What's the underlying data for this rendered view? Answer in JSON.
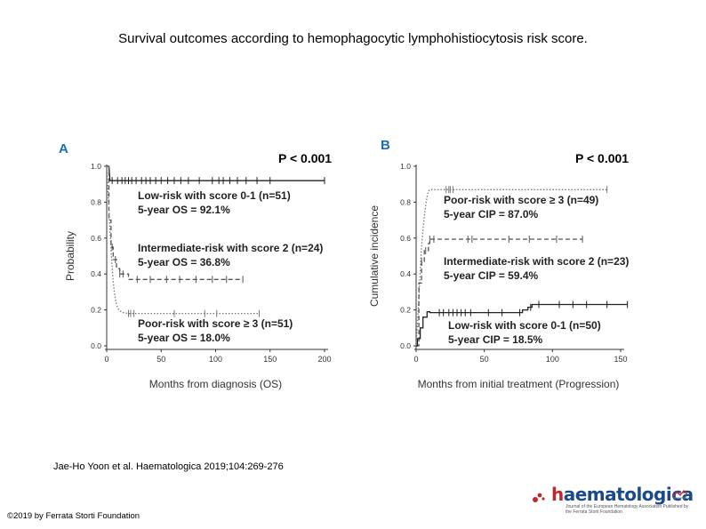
{
  "slide": {
    "title": "Survival outcomes according to hemophagocytic lymphohistiocytosis risk score.",
    "citation": "Jae-Ho Yoon et al. Haematologica 2019;104:269-276",
    "copyright": "©2019 by Ferrata Storti Foundation",
    "logo_text_h": "h",
    "logo_text_rest": "aematologica",
    "logo_subtitle": "Journal of the European Hematology Association Published by the Ferrata Storti Foundation"
  },
  "chart_data": [
    {
      "panel_label": "A",
      "type": "line",
      "title": "",
      "pvalue": "P < 0.001",
      "xlabel": "Months from diagnosis (OS)",
      "ylabel": "Probability",
      "xlim": [
        0,
        200
      ],
      "ylim": [
        0,
        1.0
      ],
      "xticks": [
        "0",
        "50",
        "100",
        "150",
        "200"
      ],
      "yticks": [
        "0.0",
        "0.2",
        "0.4",
        "0.6",
        "0.8",
        "1.0"
      ],
      "series": [
        {
          "style": "solid",
          "x": [
            0,
            2,
            3,
            200
          ],
          "y": [
            1.0,
            1.0,
            0.92,
            0.92
          ],
          "censor_x": [
            5,
            10,
            14,
            17,
            20,
            23,
            27,
            32,
            36,
            40,
            45,
            50,
            56,
            62,
            68,
            75,
            85,
            97,
            103,
            107,
            113,
            120,
            128,
            138,
            150,
            200
          ],
          "label_line1": "Low-risk with score 0-1 (n=51)",
          "label_line2": "5-year OS  = 92.1%"
        },
        {
          "style": "dashed",
          "x": [
            0,
            2,
            2,
            4,
            4,
            6,
            6,
            9,
            9,
            12,
            12,
            20,
            20,
            125
          ],
          "y": [
            1.0,
            1.0,
            0.7,
            0.7,
            0.55,
            0.55,
            0.48,
            0.48,
            0.43,
            0.43,
            0.4,
            0.4,
            0.37,
            0.37
          ],
          "censor_x": [
            5,
            8,
            12,
            15,
            28,
            40,
            55,
            67,
            82,
            97,
            110,
            125
          ],
          "label_line1": "Intermediate-risk with score 2 (n=24)",
          "label_line2": "5-year OS  = 36.8%"
        },
        {
          "style": "dotted",
          "x": [
            0,
            1,
            2,
            3,
            4,
            5,
            6,
            7,
            8,
            9,
            10,
            12,
            15,
            20,
            140
          ],
          "y": [
            1.0,
            0.88,
            0.76,
            0.64,
            0.53,
            0.44,
            0.36,
            0.3,
            0.26,
            0.23,
            0.21,
            0.195,
            0.185,
            0.18,
            0.18
          ],
          "censor_x": [
            20,
            22,
            25,
            62,
            90,
            101,
            140
          ],
          "label_line1": "Poor-risk with score ≥ 3 (n=51)",
          "label_line2": "5-year OS  = 18.0%"
        }
      ]
    },
    {
      "panel_label": "B",
      "type": "line",
      "title": "",
      "pvalue": "P < 0.001",
      "xlabel": "Months from initial treatment (Progression)",
      "ylabel": "Cumulative incidence",
      "xlim": [
        0,
        150
      ],
      "ylim": [
        0,
        1.0
      ],
      "xticks": [
        "0",
        "50",
        "100",
        "150"
      ],
      "yticks": [
        "0.0",
        "0.2",
        "0.4",
        "0.6",
        "0.8",
        "1.0"
      ],
      "series": [
        {
          "style": "dotted",
          "x": [
            0,
            1,
            2,
            3,
            4,
            5,
            6,
            7,
            8,
            9,
            10,
            140
          ],
          "y": [
            0,
            0.12,
            0.27,
            0.42,
            0.55,
            0.65,
            0.72,
            0.78,
            0.83,
            0.86,
            0.87,
            0.87
          ],
          "censor_x": [
            22,
            24,
            25,
            27,
            140
          ],
          "label_line1": "Poor-risk with score ≥ 3 (n=49)",
          "label_line2": "5-year CIP = 87.0%"
        },
        {
          "style": "dashed",
          "x": [
            0,
            2,
            2,
            4,
            4,
            6,
            6,
            9,
            9,
            10,
            10,
            122
          ],
          "y": [
            0,
            0,
            0.35,
            0.35,
            0.47,
            0.47,
            0.53,
            0.53,
            0.57,
            0.57,
            0.594,
            0.594
          ],
          "censor_x": [
            4,
            7,
            10,
            13,
            38,
            41,
            68,
            83,
            103,
            122
          ],
          "label_line1": "Intermediate-risk with score 2 (n=23)",
          "label_line2": "5-year CIP = 59.4%"
        },
        {
          "style": "solid",
          "x": [
            0,
            1,
            1,
            3,
            3,
            5,
            5,
            8,
            8,
            10,
            10,
            78,
            78,
            82,
            82,
            85,
            85,
            155
          ],
          "y": [
            0,
            0,
            0.04,
            0.04,
            0.1,
            0.1,
            0.16,
            0.16,
            0.19,
            0.19,
            0.185,
            0.185,
            0.2,
            0.2,
            0.215,
            0.215,
            0.23,
            0.23
          ],
          "censor_x": [
            17,
            20,
            24,
            27,
            30,
            33,
            36,
            40,
            53,
            63,
            76,
            84,
            90,
            105,
            115,
            125,
            140,
            155
          ],
          "label_line1": "Low-risk with score 0-1 (n=50)",
          "label_line2": "5-year CIP = 18.5%"
        }
      ]
    }
  ]
}
